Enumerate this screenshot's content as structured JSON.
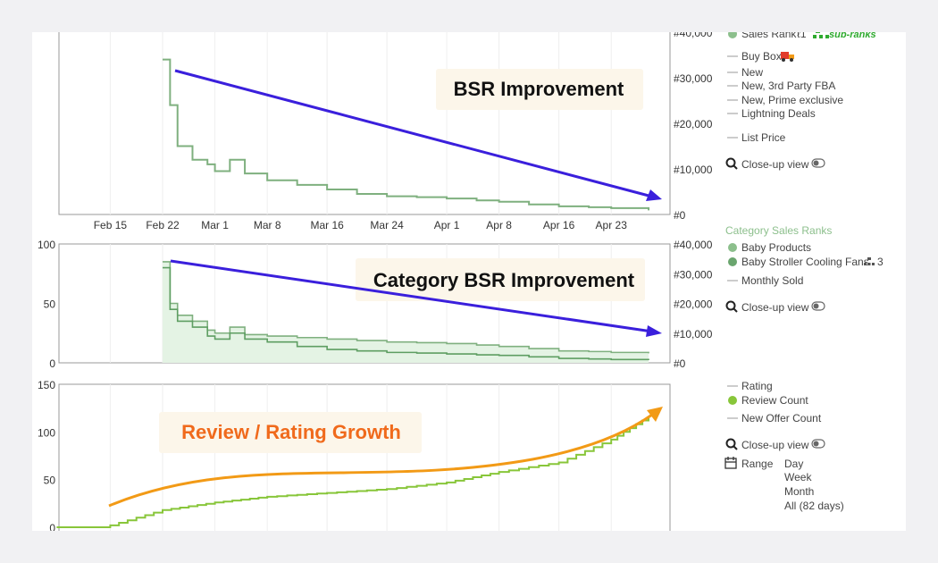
{
  "chart_data": [
    {
      "type": "line",
      "name_id": "sales-rank",
      "x_ticks": [
        "Feb 15",
        "Feb 22",
        "Mar 1",
        "Mar 8",
        "Mar 16",
        "Mar 24",
        "Apr 1",
        "Apr 8",
        "Apr 16",
        "Apr 23"
      ],
      "y_ticks_right": [
        "#0",
        "#10,000",
        "#20,000",
        "#30,000",
        "#40,000"
      ],
      "ylim": [
        0,
        40000
      ],
      "x": [
        "Feb 22",
        "Feb 23",
        "Feb 24",
        "Feb 26",
        "Feb 28",
        "Mar 1",
        "Mar 3",
        "Mar 5",
        "Mar 8",
        "Mar 12",
        "Mar 16",
        "Mar 20",
        "Mar 24",
        "Mar 28",
        "Apr 1",
        "Apr 5",
        "Apr 8",
        "Apr 12",
        "Apr 16",
        "Apr 20",
        "Apr 23",
        "Apr 28"
      ],
      "series": [
        {
          "values": [
            34000,
            24000,
            15000,
            12000,
            11000,
            9500,
            12000,
            9000,
            7500,
            6500,
            5500,
            4500,
            4000,
            3800,
            3500,
            3100,
            2800,
            2200,
            1800,
            1600,
            1400,
            900
          ]
        }
      ],
      "annotation": "BSR Improvement",
      "legend": {
        "items": [
          "Sales Rank",
          "Buy Box",
          "New",
          "New, 3rd Party FBA",
          "New, Prime exclusive",
          "Lightning Deals",
          "List Price"
        ],
        "sales_rank_suffix": "ℓ1",
        "sub_ranks": "sub-ranks",
        "closeup": "Close-up view"
      }
    },
    {
      "type": "line",
      "name_id": "category-sales-ranks",
      "y_ticks_left": [
        "0",
        "50",
        "100"
      ],
      "y_ticks_right": [
        "#0",
        "#10,000",
        "#20,000",
        "#30,000",
        "#40,000"
      ],
      "ylim": [
        0,
        40000
      ],
      "x": [
        "Feb 22",
        "Feb 23",
        "Feb 24",
        "Feb 26",
        "Feb 28",
        "Mar 1",
        "Mar 3",
        "Mar 5",
        "Mar 8",
        "Mar 12",
        "Mar 16",
        "Mar 20",
        "Mar 24",
        "Mar 28",
        "Apr 1",
        "Apr 5",
        "Apr 8",
        "Apr 12",
        "Apr 16",
        "Apr 20",
        "Apr 23",
        "Apr 28"
      ],
      "series": [
        {
          "name": "Baby Products",
          "values": [
            34000,
            20000,
            16000,
            14000,
            11000,
            10000,
            12000,
            9500,
            9000,
            8500,
            8000,
            7500,
            7000,
            6800,
            6500,
            6000,
            5500,
            4800,
            4000,
            3800,
            3500,
            3200
          ]
        },
        {
          "name": "Baby Stroller Cooling Fans",
          "values": [
            32000,
            18000,
            14000,
            12000,
            9000,
            8000,
            10000,
            8000,
            7000,
            5500,
            4500,
            4000,
            3500,
            3300,
            3000,
            2700,
            2500,
            2000,
            1500,
            1300,
            1100,
            900
          ]
        }
      ],
      "annotation": "Category BSR Improvement",
      "legend": {
        "head": "Category Sales Ranks",
        "items": [
          "Baby Products",
          "Baby Stroller Cooling Fans",
          "Monthly Sold"
        ],
        "cooling_suffix": "3",
        "closeup": "Close-up view"
      }
    },
    {
      "type": "line",
      "name_id": "reviews",
      "y_ticks_left": [
        "0",
        "50",
        "100",
        "150"
      ],
      "ylim": [
        0,
        150
      ],
      "x": [
        "Feb 15",
        "Feb 22",
        "Mar 1",
        "Mar 8",
        "Mar 16",
        "Mar 24",
        "Apr 1",
        "Apr 8",
        "Apr 16",
        "Apr 23",
        "Apr 28"
      ],
      "series": [
        {
          "name": "Review Count",
          "values": [
            2,
            18,
            26,
            32,
            36,
            40,
            47,
            58,
            68,
            92,
            116
          ]
        }
      ],
      "annotation": "Review  / Rating Growth",
      "legend": {
        "items": [
          "Rating",
          "Review Count",
          "New Offer Count"
        ],
        "closeup": "Close-up view",
        "range_label": "Range",
        "range_options": [
          "Day",
          "Week",
          "Month",
          "All (82 days)"
        ]
      }
    }
  ],
  "colors": {
    "sales_line": "#7fb07f",
    "review_line": "#88c63a",
    "blue_arrow": "#3a1fdc",
    "orange_arrow": "#f29a16",
    "review_text": "#f06a1c",
    "annotation_bg": "#fcf6ea"
  }
}
